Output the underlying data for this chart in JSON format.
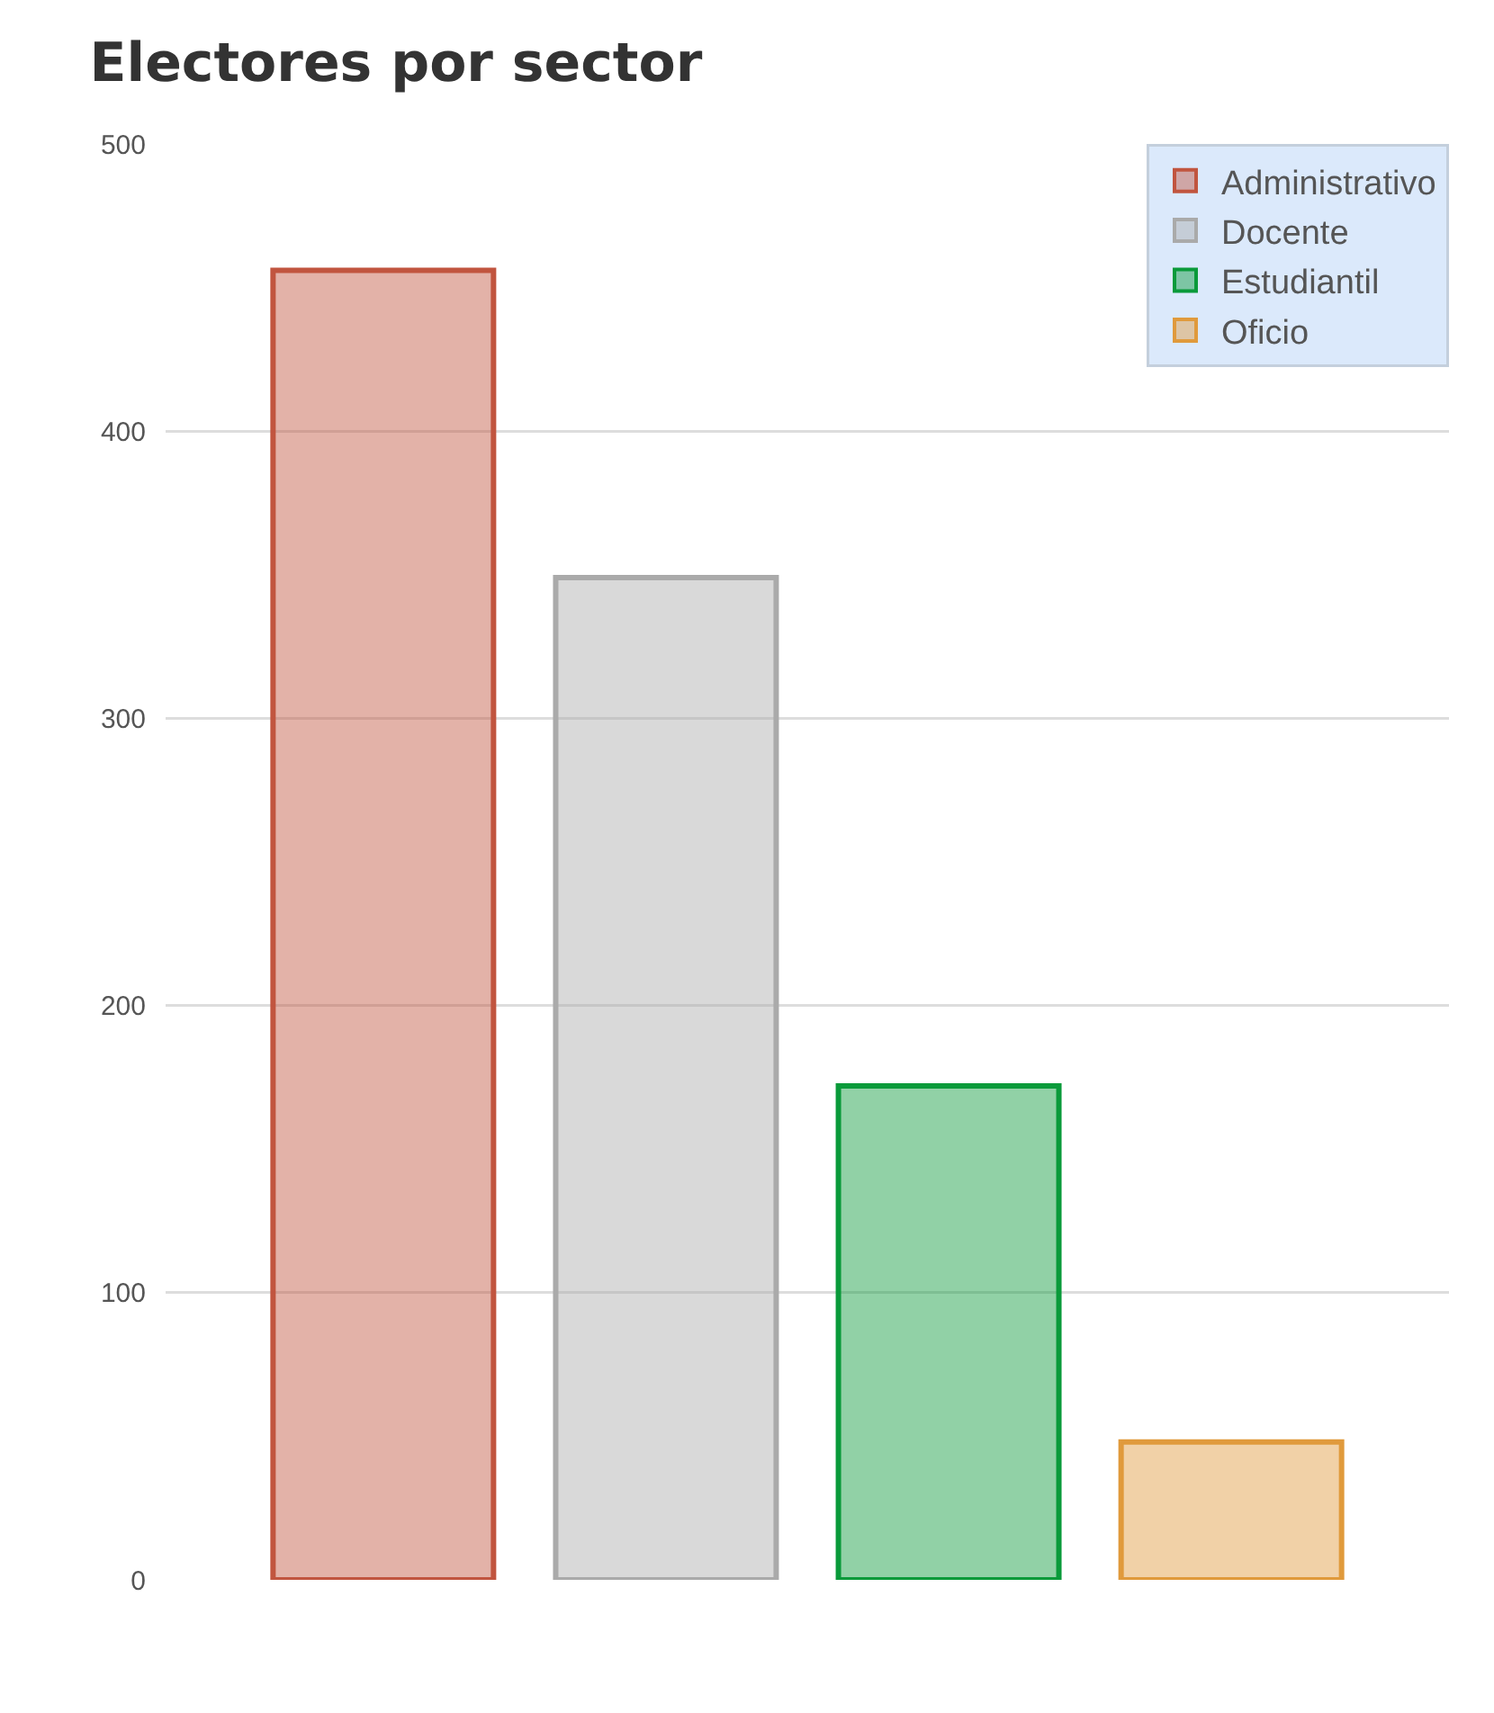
{
  "chart_data": {
    "type": "bar",
    "title": "Electores por sector",
    "categories": [
      null,
      null,
      null,
      null
    ],
    "series": [
      {
        "name": "Administrativo",
        "color": "#c1553f",
        "values": [
          456,
          null,
          null,
          null
        ]
      },
      {
        "name": "Docente",
        "color": "#aaaaaa",
        "values": [
          null,
          349,
          null,
          null
        ]
      },
      {
        "name": "Estudiantil",
        "color": "#0a9a3a",
        "values": [
          null,
          null,
          172,
          null
        ]
      },
      {
        "name": "Oficio",
        "color": "#e09a3c",
        "values": [
          null,
          null,
          null,
          48
        ]
      }
    ],
    "ylim": [
      0,
      500
    ],
    "yticks": [
      0,
      100,
      200,
      300,
      400,
      500
    ],
    "grid": "y",
    "legend": "top right"
  }
}
